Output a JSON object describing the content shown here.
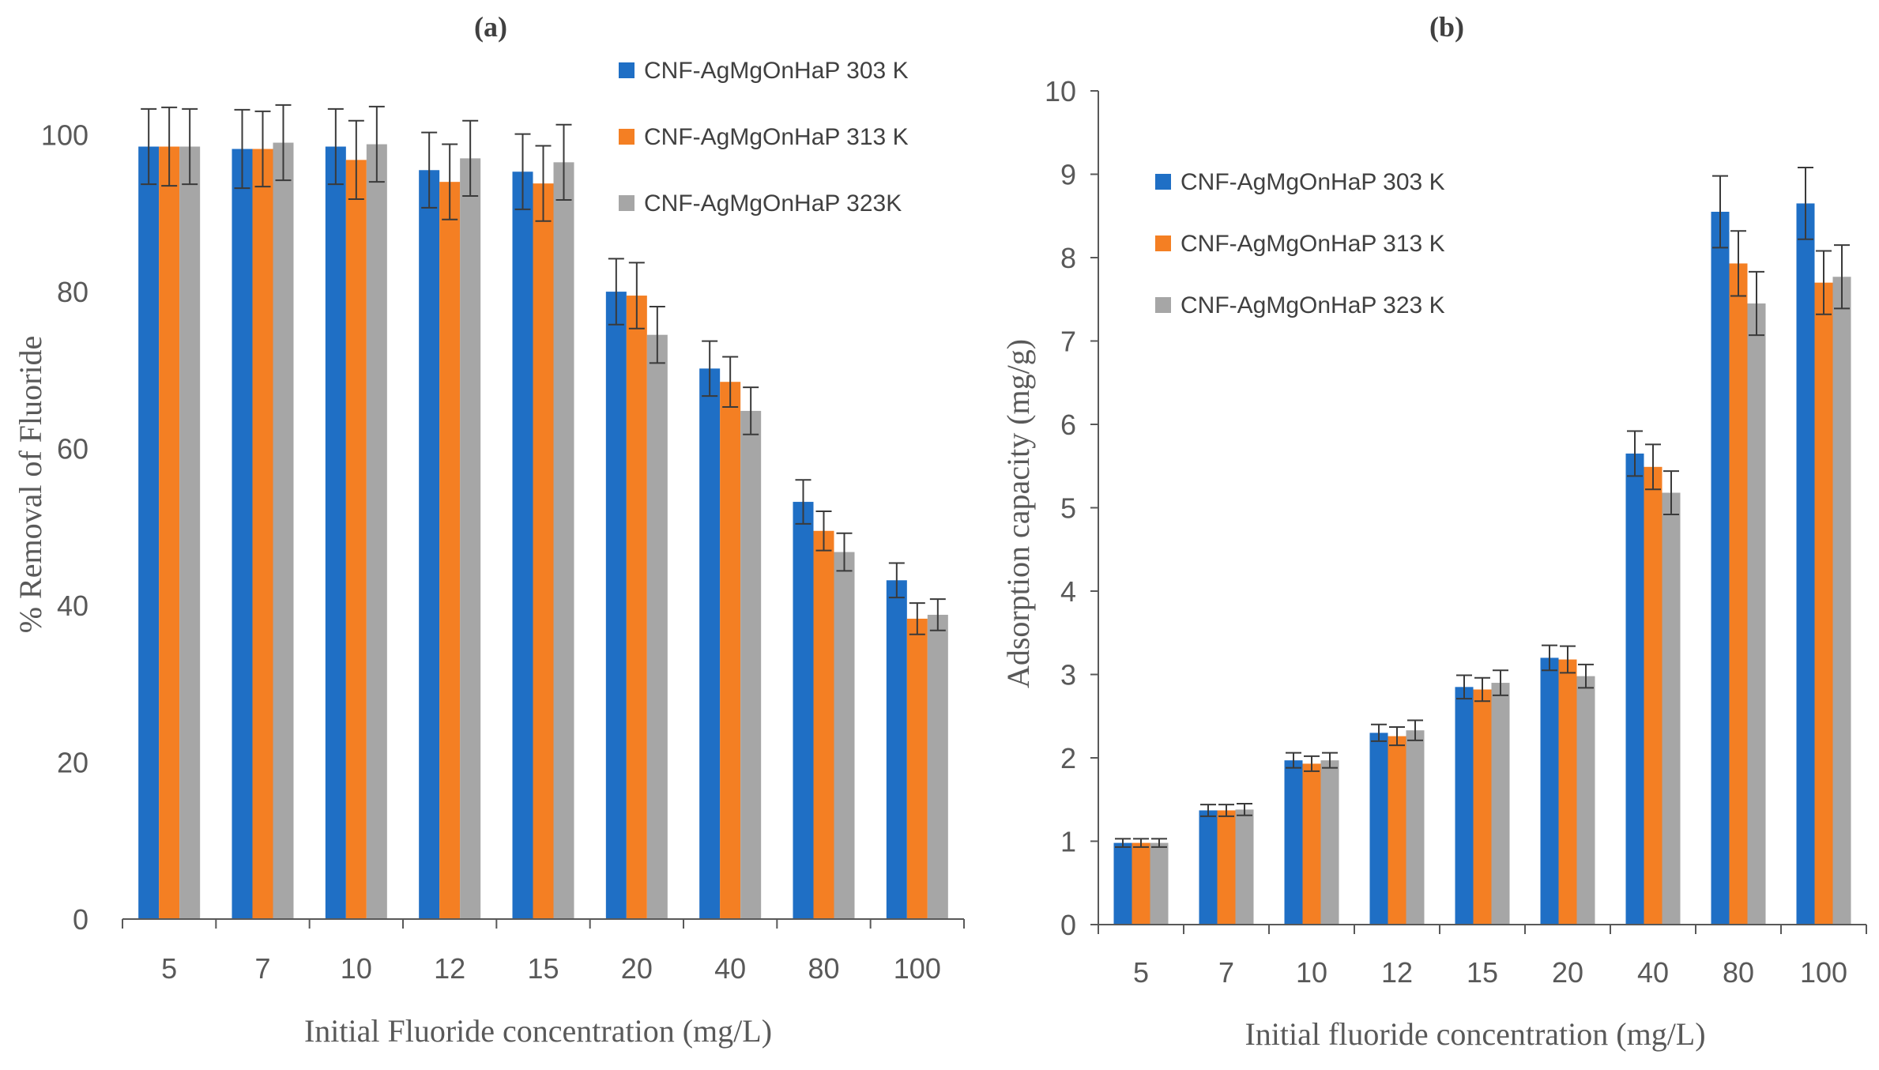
{
  "chart_data": [
    {
      "type": "bar",
      "title": "(a)",
      "xlabel": "Initial Fluoride concentration (mg/L)",
      "ylabel": "% Removal of Fluoride",
      "ylim": [
        0,
        105
      ],
      "yticks": [
        0,
        20,
        40,
        60,
        80,
        100
      ],
      "categories": [
        "5",
        "7",
        "10",
        "12",
        "15",
        "20",
        "40",
        "80",
        "100"
      ],
      "series": [
        {
          "name": "CNF-AgMgOnHaP 303 K",
          "color": "#1F6FC5",
          "values": [
            98.5,
            98.2,
            98.5,
            95.5,
            95.3,
            80.0,
            70.2,
            53.2,
            43.2
          ],
          "errors": [
            4.8,
            5.0,
            4.8,
            4.8,
            4.8,
            4.2,
            3.5,
            2.8,
            2.2
          ]
        },
        {
          "name": "CNF-AgMgOnHaP 313 K",
          "color": "#F47F23",
          "values": [
            98.5,
            98.2,
            96.8,
            94.0,
            93.8,
            79.5,
            68.5,
            49.5,
            38.3
          ],
          "errors": [
            5.0,
            4.8,
            5.0,
            4.8,
            4.8,
            4.2,
            3.2,
            2.5,
            2.0
          ]
        },
        {
          "name": "CNF-AgMgOnHaP 323K",
          "color": "#A6A6A6",
          "values": [
            98.5,
            99.0,
            98.8,
            97.0,
            96.5,
            74.5,
            64.8,
            46.8,
            38.8
          ],
          "errors": [
            4.8,
            4.8,
            4.8,
            4.8,
            4.8,
            3.6,
            3.0,
            2.4,
            2.0
          ]
        }
      ],
      "grid": false,
      "legend": "top-right"
    },
    {
      "type": "bar",
      "title": "(b)",
      "xlabel": "Initial fluoride concentration (mg/L)",
      "ylabel": "Adsorption  capacity (mg/g)",
      "ylim": [
        0,
        10
      ],
      "yticks": [
        0,
        1,
        2,
        3,
        4,
        5,
        6,
        7,
        8,
        9,
        10
      ],
      "categories": [
        "5",
        "7",
        "10",
        "12",
        "15",
        "20",
        "40",
        "80",
        "100"
      ],
      "series": [
        {
          "name": "CNF-AgMgOnHaP 303 K",
          "color": "#1F6FC5",
          "values": [
            0.98,
            1.37,
            1.97,
            2.3,
            2.85,
            3.2,
            5.65,
            8.55,
            8.65
          ],
          "errors": [
            0.05,
            0.07,
            0.09,
            0.1,
            0.14,
            0.15,
            0.27,
            0.43,
            0.43
          ]
        },
        {
          "name": "CNF-AgMgOnHaP 313 K",
          "color": "#F47F23",
          "values": [
            0.98,
            1.37,
            1.93,
            2.26,
            2.82,
            3.18,
            5.49,
            7.93,
            7.7
          ],
          "errors": [
            0.05,
            0.07,
            0.09,
            0.11,
            0.14,
            0.16,
            0.27,
            0.39,
            0.38
          ]
        },
        {
          "name": "CNF-AgMgOnHaP 323 K",
          "color": "#A6A6A6",
          "values": [
            0.98,
            1.38,
            1.97,
            2.33,
            2.9,
            2.98,
            5.18,
            7.45,
            7.77
          ],
          "errors": [
            0.05,
            0.07,
            0.09,
            0.12,
            0.15,
            0.14,
            0.26,
            0.38,
            0.38
          ]
        }
      ],
      "grid": false,
      "legend": "top-left"
    }
  ]
}
